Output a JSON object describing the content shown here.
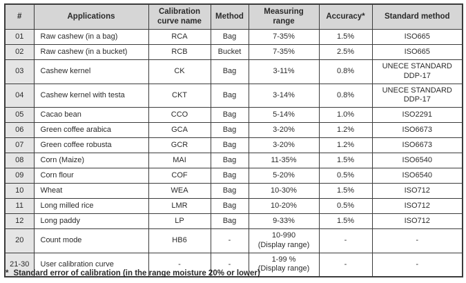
{
  "table": {
    "columns": [
      "#",
      "Applications",
      "Calibration\ncurve name",
      "Method",
      "Measuring\nrange",
      "Accuracy*",
      "Standard method"
    ],
    "fields": [
      "num",
      "app",
      "curve",
      "method",
      "range",
      "accuracy",
      "standard"
    ],
    "rows": [
      {
        "num": "01",
        "app": "Raw cashew (in a bag)",
        "curve": "RCA",
        "method": "Bag",
        "range": "7-35%",
        "accuracy": "1.5%",
        "standard": "ISO665"
      },
      {
        "num": "02",
        "app": "Raw cashew (in a bucket)",
        "curve": "RCB",
        "method": "Bucket",
        "range": "7-35%",
        "accuracy": "2.5%",
        "standard": "ISO665"
      },
      {
        "num": "03",
        "app": "Cashew kernel",
        "curve": "CK",
        "method": "Bag",
        "range": "3-11%",
        "accuracy": "0.8%",
        "standard": "UNECE STANDARD\nDDP-17"
      },
      {
        "num": "04",
        "app": "Cashew kernel with testa",
        "curve": "CKT",
        "method": "Bag",
        "range": "3-14%",
        "accuracy": "0.8%",
        "standard": "UNECE STANDARD\nDDP-17"
      },
      {
        "num": "05",
        "app": "Cacao bean",
        "curve": "CCO",
        "method": "Bag",
        "range": "5-14%",
        "accuracy": "1.0%",
        "standard": "ISO2291"
      },
      {
        "num": "06",
        "app": "Green coffee arabica",
        "curve": "GCA",
        "method": "Bag",
        "range": "3-20%",
        "accuracy": "1.2%",
        "standard": "ISO6673"
      },
      {
        "num": "07",
        "app": "Green coffee robusta",
        "curve": "GCR",
        "method": "Bag",
        "range": "3-20%",
        "accuracy": "1.2%",
        "standard": "ISO6673"
      },
      {
        "num": "08",
        "app": "Corn (Maize)",
        "curve": "MAI",
        "method": "Bag",
        "range": "11-35%",
        "accuracy": "1.5%",
        "standard": "ISO6540"
      },
      {
        "num": "09",
        "app": "Corn flour",
        "curve": "COF",
        "method": "Bag",
        "range": "5-20%",
        "accuracy": "0.5%",
        "standard": "ISO6540"
      },
      {
        "num": "10",
        "app": "Wheat",
        "curve": "WEA",
        "method": "Bag",
        "range": "10-30%",
        "accuracy": "1.5%",
        "standard": "ISO712"
      },
      {
        "num": "11",
        "app": "Long milled rice",
        "curve": "LMR",
        "method": "Bag",
        "range": "10-20%",
        "accuracy": "0.5%",
        "standard": "ISO712"
      },
      {
        "num": "12",
        "app": "Long paddy",
        "curve": "LP",
        "method": "Bag",
        "range": "9-33%",
        "accuracy": "1.5%",
        "standard": "ISO712"
      },
      {
        "num": "20",
        "app": "Count mode",
        "curve": "HB6",
        "method": "-",
        "range": "10-990\n(Display range)",
        "accuracy": "-",
        "standard": "-"
      },
      {
        "num": "21-30",
        "app": "User calibration curve",
        "curve": "-",
        "method": "-",
        "range": "1-99 %\n(Display range)",
        "accuracy": "-",
        "standard": "-"
      }
    ]
  },
  "footnote": {
    "marker": "*",
    "text": "Standard error of calibration (in the range moisture 20% or lower)"
  },
  "colors": {
    "header_bg": "#d6d6d6",
    "num_col_bg": "#e5e5e5",
    "border": "#3a3a3a",
    "text": "#2a2a2a"
  }
}
